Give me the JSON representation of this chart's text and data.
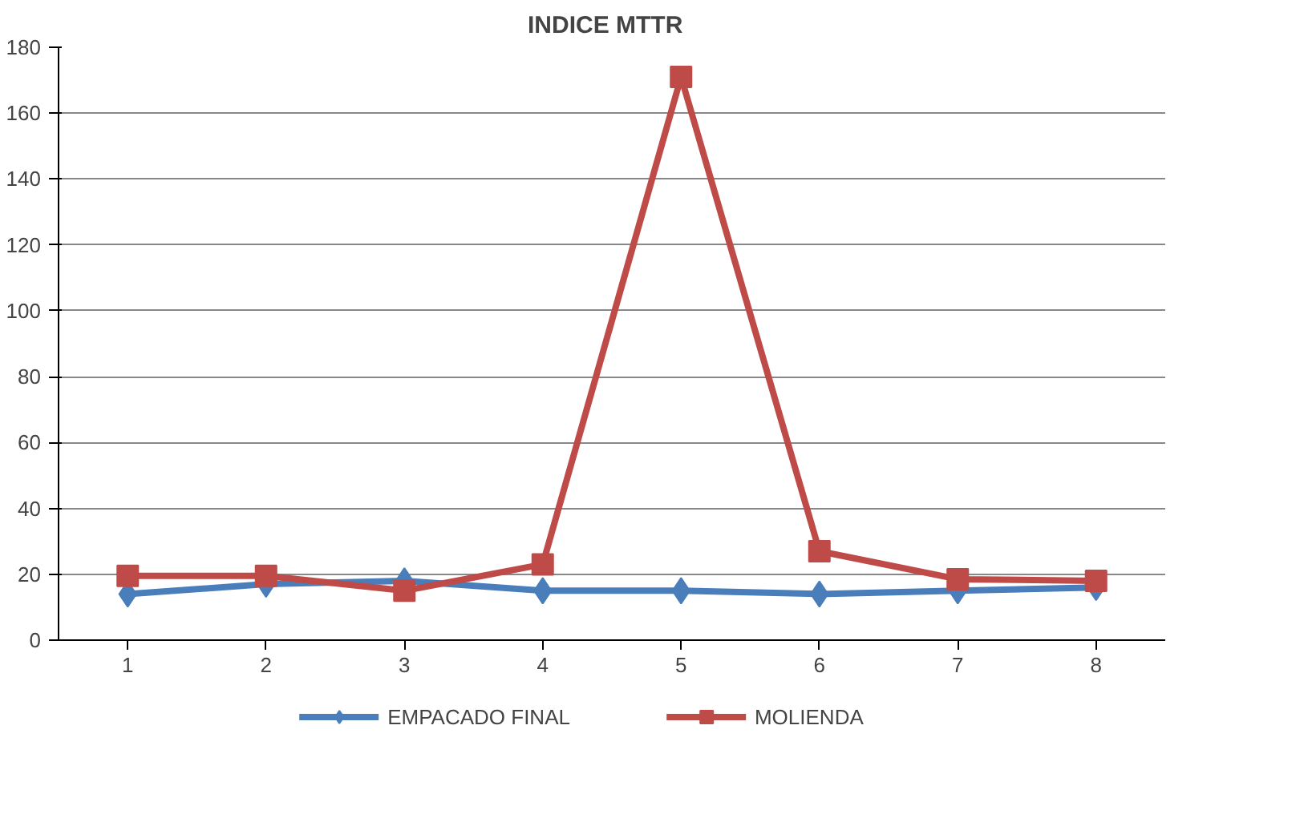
{
  "chart_data": {
    "type": "line",
    "title": "INDICE   MTTR",
    "categories": [
      "1",
      "2",
      "3",
      "4",
      "5",
      "6",
      "7",
      "8"
    ],
    "series": [
      {
        "name": "EMPACADO FINAL",
        "color": "#4a7ebb",
        "marker": "diamond",
        "values": [
          14,
          17,
          18,
          15,
          15,
          14,
          15,
          16
        ]
      },
      {
        "name": "MOLIENDA",
        "color": "#be4b48",
        "marker": "square",
        "values": [
          19.5,
          19.5,
          15,
          23,
          171,
          27,
          18.5,
          18
        ]
      }
    ],
    "ylim": [
      0,
      180
    ],
    "yticks": [
      0,
      20,
      40,
      60,
      80,
      100,
      120,
      140,
      160,
      180
    ],
    "grid": "y",
    "legend": "bottom",
    "line_style": "solid"
  }
}
